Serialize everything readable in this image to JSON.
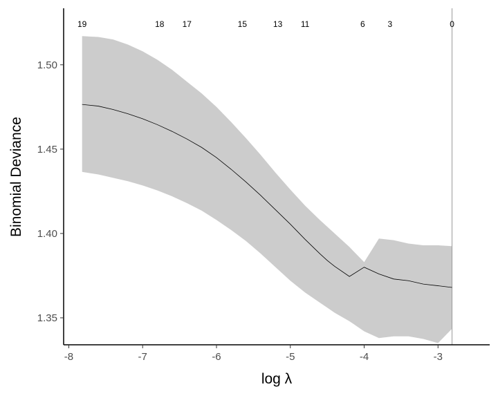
{
  "chart_data": {
    "type": "line",
    "xlabel": "log λ",
    "ylabel": "Binomial Deviance",
    "xlim": [
      -8.07,
      -2.3
    ],
    "ylim": [
      1.334,
      1.5335
    ],
    "x_ticks": [
      -8,
      -7,
      -6,
      -5,
      -4,
      -3
    ],
    "x_tick_labels": [
      "-8",
      "-7",
      "-6",
      "-5",
      "-4",
      "-3"
    ],
    "y_ticks": [
      1.35,
      1.4,
      1.45,
      1.5
    ],
    "y_tick_labels": [
      "1.35",
      "1.40",
      "1.45",
      "1.50"
    ],
    "top_axis": {
      "x": [
        -7.82,
        -6.77,
        -6.4,
        -5.65,
        -5.17,
        -4.8,
        -4.02,
        -3.65,
        -2.81
      ],
      "labels": [
        "19",
        "18",
        "17",
        "15",
        "13",
        "11",
        "6",
        "3",
        "0"
      ]
    },
    "vline_x": -2.81,
    "grid": false,
    "colors": {
      "band": "#cccccc",
      "line": "#000000",
      "axis": "#000000",
      "vline": "#999999"
    },
    "series": [
      {
        "x": [
          -7.82,
          -7.6,
          -7.4,
          -7.2,
          -7.0,
          -6.8,
          -6.6,
          -6.4,
          -6.2,
          -6.0,
          -5.8,
          -5.6,
          -5.4,
          -5.2,
          -5.0,
          -4.8,
          -4.6,
          -4.5,
          -4.4,
          -4.2,
          -4.0,
          -3.8,
          -3.6,
          -3.4,
          -3.2,
          -3.0,
          -2.81
        ],
        "y": [
          1.4765,
          1.4755,
          1.4735,
          1.471,
          1.468,
          1.4645,
          1.4605,
          1.456,
          1.451,
          1.445,
          1.438,
          1.4305,
          1.4225,
          1.414,
          1.4055,
          1.3965,
          1.388,
          1.384,
          1.3805,
          1.3745,
          1.38,
          1.376,
          1.373,
          1.372,
          1.37,
          1.369,
          1.368
        ],
        "lower": [
          1.4365,
          1.435,
          1.433,
          1.431,
          1.4285,
          1.4255,
          1.422,
          1.418,
          1.4135,
          1.408,
          1.402,
          1.3955,
          1.388,
          1.38,
          1.372,
          1.365,
          1.359,
          1.356,
          1.353,
          1.348,
          1.342,
          1.338,
          1.339,
          1.339,
          1.3375,
          1.335,
          1.3435
        ],
        "upper": [
          1.517,
          1.5165,
          1.515,
          1.512,
          1.508,
          1.503,
          1.497,
          1.49,
          1.483,
          1.475,
          1.466,
          1.4565,
          1.4465,
          1.436,
          1.426,
          1.4165,
          1.408,
          1.404,
          1.4,
          1.392,
          1.383,
          1.397,
          1.396,
          1.394,
          1.393,
          1.393,
          1.3925
        ]
      }
    ]
  }
}
